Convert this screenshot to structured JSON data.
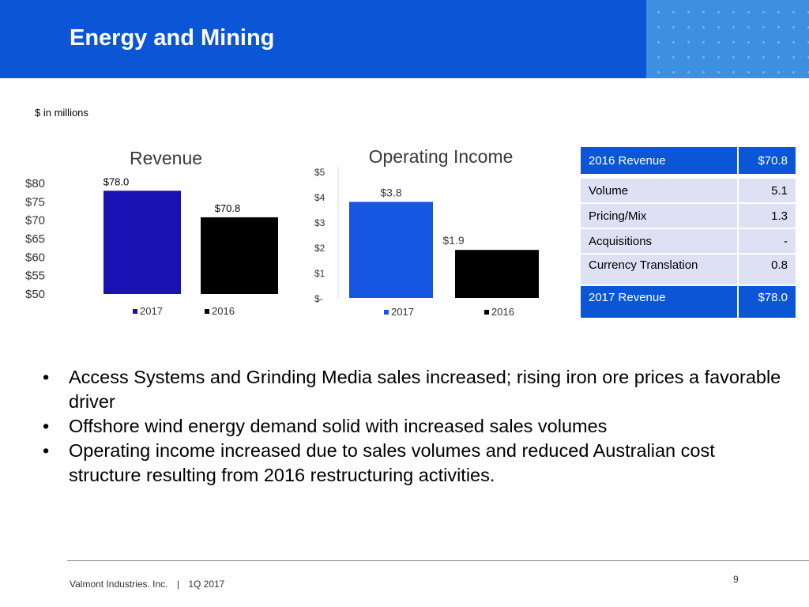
{
  "header": {
    "title": "Energy and Mining"
  },
  "units_note": "$ in millions",
  "colors": {
    "brand_blue": "#0a56d6",
    "revenue_2017": "#1b11b3",
    "oi_2017": "#1655e0",
    "year_2016": "#000000",
    "table_row": "#dde1f3"
  },
  "chart_data": [
    {
      "type": "bar",
      "title": "Revenue",
      "categories": [
        "2017",
        "2016"
      ],
      "values": [
        78.0,
        70.8
      ],
      "data_labels": [
        "$78.0",
        "$70.8"
      ],
      "ylim": [
        50,
        80
      ],
      "yticks": [
        50,
        55,
        60,
        65,
        70,
        75,
        80
      ],
      "ytick_labels": [
        "$50",
        "$55",
        "$60",
        "$65",
        "$70",
        "$75",
        "$80"
      ],
      "legend": [
        "2017",
        "2016"
      ],
      "legend_position": "bottom",
      "grid": false
    },
    {
      "type": "bar",
      "title": "Operating Income",
      "categories": [
        "2017",
        "2016"
      ],
      "values": [
        3.8,
        1.9
      ],
      "data_labels": [
        "$3.8",
        "$1.9"
      ],
      "ylim": [
        0,
        5
      ],
      "yticks": [
        0,
        1,
        2,
        3,
        4,
        5
      ],
      "ytick_labels": [
        "$-",
        "$1",
        "$2",
        "$3",
        "$4",
        "$5"
      ],
      "legend": [
        "2017",
        "2016"
      ],
      "legend_position": "bottom",
      "grid": false
    }
  ],
  "revenue_table": {
    "header": {
      "label": "2016 Revenue",
      "value": "$70.8"
    },
    "rows": [
      {
        "label": "Volume",
        "value": "5.1"
      },
      {
        "label": "Pricing/Mix",
        "value": "1.3"
      },
      {
        "label": "Acquisitions",
        "value": "-"
      },
      {
        "label": "Currency Translation",
        "value": "0.8"
      }
    ],
    "footer": {
      "label": "2017 Revenue",
      "value": "$78.0"
    }
  },
  "bullets": [
    "Access Systems and Grinding Media sales increased; rising iron ore prices a favorable driver",
    "Offshore wind energy demand solid with increased sales volumes",
    "Operating income increased due to sales volumes and reduced Australian cost structure resulting from 2016 restructuring activities."
  ],
  "footer": {
    "company": "Valmont Industries. Inc.",
    "separator": "|",
    "period": "1Q 2017",
    "page_number": "9"
  }
}
